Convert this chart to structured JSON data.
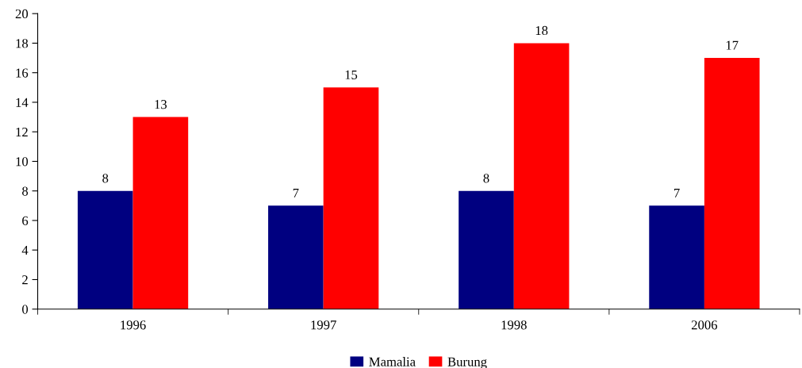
{
  "chart_data": {
    "type": "bar",
    "categories": [
      "1996",
      "1997",
      "1998",
      "2006"
    ],
    "series": [
      {
        "name": "Mamalia",
        "color": "#000080",
        "values": [
          8,
          7,
          8,
          7
        ]
      },
      {
        "name": "Burung",
        "color": "#ff0000",
        "values": [
          13,
          15,
          18,
          17
        ]
      }
    ],
    "ylim": [
      0,
      20
    ],
    "yticks": [
      0,
      2,
      4,
      6,
      8,
      10,
      12,
      14,
      16,
      18,
      20
    ],
    "data_labels": true,
    "grid": false,
    "legend": "bottom"
  }
}
